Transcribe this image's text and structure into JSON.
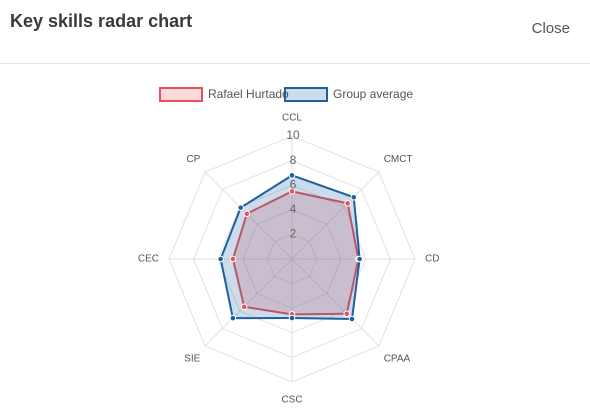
{
  "header": {
    "title": "Key skills radar chart",
    "close": "Close"
  },
  "chart_data": {
    "type": "radar",
    "categories": [
      "CCL",
      "CMCT",
      "CD",
      "CPAA",
      "CSC",
      "SIE",
      "CEC",
      "CP"
    ],
    "series": [
      {
        "name": "Rafael Hurtado",
        "color": "#e8525b",
        "values": [
          5.5,
          6.4,
          5.4,
          6.3,
          4.5,
          5.5,
          4.8,
          5.2
        ]
      },
      {
        "name": "Group average",
        "color": "#1d5fa0",
        "values": [
          6.8,
          7.1,
          5.5,
          6.9,
          4.8,
          6.8,
          5.8,
          5.9
        ]
      }
    ],
    "rlim": [
      0,
      10
    ],
    "rticks": [
      2,
      4,
      6,
      8,
      10
    ],
    "grid": true,
    "legend": "top"
  }
}
